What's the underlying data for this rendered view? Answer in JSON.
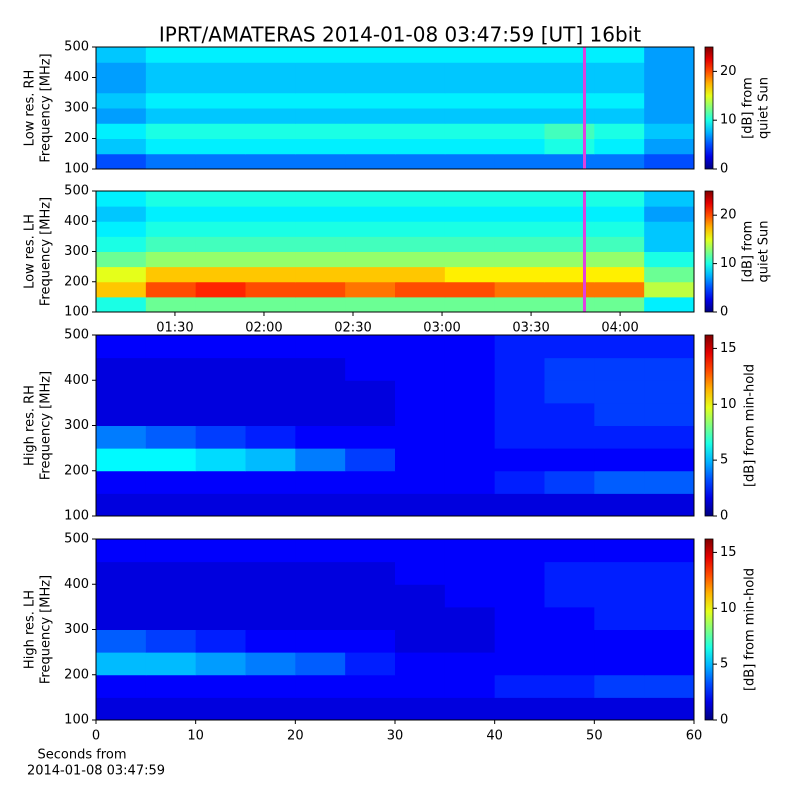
{
  "title": "IPRT/AMATERAS 2014-01-08 03:47:59 [UT]   16bit",
  "chart_data": [
    {
      "type": "heatmap",
      "ylabel": [
        "Low res. RH",
        "Frequency [MHz]"
      ],
      "clabel": [
        "[dB] from",
        "quiet Sun"
      ],
      "xlim": [
        63.4,
        264.9
      ],
      "ylim": [
        100,
        500
      ],
      "yticks": [
        100,
        200,
        300,
        400,
        500
      ],
      "zlim": [
        0,
        25
      ],
      "cticks": [
        0,
        10,
        20
      ],
      "marker_x": 228,
      "marker_color": "#e040e0",
      "z": [
        [
          5,
          6,
          6,
          6,
          6,
          6,
          6,
          6,
          6,
          6,
          6,
          5
        ],
        [
          8,
          9,
          9,
          9,
          9,
          9,
          9,
          9,
          9,
          10,
          9,
          7
        ],
        [
          9,
          10,
          10,
          10,
          10,
          10,
          10,
          10,
          10,
          11,
          10,
          8
        ],
        [
          7,
          8,
          8,
          8,
          8,
          8,
          8,
          8,
          8,
          8,
          8,
          7
        ],
        [
          8,
          9,
          9,
          9,
          9,
          9,
          9,
          9,
          9,
          9,
          9,
          7
        ],
        [
          7,
          8,
          8,
          8,
          8,
          8,
          8,
          8,
          8,
          8,
          8,
          7
        ],
        [
          7,
          8,
          8,
          8,
          8,
          8,
          8,
          8,
          8,
          8,
          8,
          7
        ],
        [
          8,
          9,
          9,
          9,
          9,
          9,
          9,
          9,
          9,
          9,
          9,
          7
        ]
      ]
    },
    {
      "type": "heatmap",
      "ylabel": [
        "Low res. LH",
        "Frequency [MHz]"
      ],
      "clabel": [
        "[dB] from",
        "quiet Sun"
      ],
      "xlim": [
        63.4,
        264.9
      ],
      "ylim": [
        100,
        500
      ],
      "yticks": [
        100,
        200,
        300,
        400,
        500
      ],
      "xticks": [
        {
          "value": 90,
          "label": "01:30"
        },
        {
          "value": 120,
          "label": "02:00"
        },
        {
          "value": 150,
          "label": "02:30"
        },
        {
          "value": 180,
          "label": "03:00"
        },
        {
          "value": 210,
          "label": "03:30"
        },
        {
          "value": 240,
          "label": "04:00"
        }
      ],
      "zlim": [
        0,
        25
      ],
      "cticks": [
        0,
        10,
        20
      ],
      "marker_x": 228,
      "marker_color": "#e040e0",
      "z": [
        [
          10,
          12,
          12,
          12,
          12,
          12,
          12,
          12,
          12,
          12,
          12,
          9
        ],
        [
          17,
          20,
          21,
          20,
          20,
          19,
          20,
          20,
          19,
          19,
          19,
          14
        ],
        [
          15,
          17,
          17,
          17,
          17,
          17,
          17,
          16,
          16,
          16,
          16,
          12
        ],
        [
          12,
          13,
          13,
          13,
          13,
          13,
          13,
          13,
          13,
          13,
          13,
          10
        ],
        [
          10,
          11,
          11,
          11,
          11,
          11,
          11,
          11,
          11,
          11,
          11,
          8
        ],
        [
          9,
          10,
          10,
          10,
          10,
          10,
          10,
          10,
          10,
          10,
          10,
          8
        ],
        [
          8,
          9,
          9,
          9,
          9,
          9,
          9,
          9,
          9,
          9,
          9,
          7
        ],
        [
          9,
          10,
          10,
          10,
          10,
          10,
          10,
          10,
          10,
          10,
          10,
          8
        ]
      ]
    },
    {
      "type": "heatmap",
      "ylabel": [
        "High res. RH",
        "Frequency [MHz]"
      ],
      "clabel": [
        "[dB] from min-hold"
      ],
      "xlim": [
        0,
        60
      ],
      "ylim": [
        100,
        500
      ],
      "yticks": [
        100,
        200,
        300,
        400,
        500
      ],
      "zlim": [
        0,
        16.2
      ],
      "cticks": [
        0,
        5,
        10,
        15
      ],
      "z": [
        [
          1.5,
          1.5,
          1.5,
          1.5,
          1.5,
          1.5,
          1.5,
          1.5,
          1.5,
          1.5,
          1.5,
          1.5
        ],
        [
          2,
          2,
          2,
          2,
          2,
          2,
          2,
          2,
          2.5,
          3,
          3.5,
          3.5
        ],
        [
          6,
          6,
          5.5,
          5,
          4,
          3,
          2,
          2,
          2,
          2,
          2,
          2
        ],
        [
          4,
          3.5,
          3,
          2.5,
          2,
          2,
          2,
          2,
          2.5,
          2.5,
          2.5,
          2.5
        ],
        [
          1.5,
          1.5,
          1.5,
          1.5,
          1.5,
          1.5,
          2,
          2,
          2.5,
          2.5,
          3,
          3
        ],
        [
          1.5,
          1.5,
          1.5,
          1.5,
          1.5,
          1.5,
          2,
          2,
          2.5,
          3,
          3,
          3
        ],
        [
          1.5,
          1.5,
          1.5,
          1.5,
          1.5,
          2,
          2,
          2,
          2.5,
          3,
          3,
          3
        ],
        [
          2,
          2,
          2,
          2,
          2,
          2,
          2,
          2,
          2.5,
          2.5,
          2.5,
          2.5
        ]
      ]
    },
    {
      "type": "heatmap",
      "ylabel": [
        "High res. LH",
        "Frequency [MHz]"
      ],
      "clabel": [
        "[dB] from min-hold"
      ],
      "xlim": [
        0,
        60
      ],
      "ylim": [
        100,
        500
      ],
      "yticks": [
        100,
        200,
        300,
        400,
        500
      ],
      "xticks": [
        0,
        10,
        20,
        30,
        40,
        50,
        60
      ],
      "xlabel": [
        "Seconds from",
        "2014-01-08 03:47:59"
      ],
      "zlim": [
        0,
        16.2
      ],
      "cticks": [
        0,
        5,
        10,
        15
      ],
      "z": [
        [
          1.5,
          1.5,
          1.5,
          1.5,
          1.5,
          1.5,
          1.5,
          1.5,
          1.5,
          1.5,
          1.5,
          1.5
        ],
        [
          2,
          2,
          2,
          2,
          2,
          2,
          2,
          2,
          2.5,
          2.5,
          3,
          3
        ],
        [
          5,
          5,
          4.5,
          4,
          3.5,
          2.5,
          2,
          2,
          2,
          2,
          2,
          2
        ],
        [
          3.5,
          3,
          2.5,
          2,
          2,
          2,
          1.5,
          1.5,
          2,
          2,
          2,
          2
        ],
        [
          1.5,
          1.5,
          1.5,
          1.5,
          1.5,
          1.5,
          1.5,
          1.5,
          2,
          2,
          2.5,
          2.5
        ],
        [
          1.5,
          1.5,
          1.5,
          1.5,
          1.5,
          1.5,
          1.5,
          2,
          2,
          2.5,
          2.5,
          2.5
        ],
        [
          1.5,
          1.5,
          1.5,
          1.5,
          1.5,
          1.5,
          2,
          2,
          2,
          2.5,
          2.5,
          2.5
        ],
        [
          2,
          2,
          2,
          2,
          2,
          2,
          2,
          2,
          2,
          2,
          2,
          2
        ]
      ]
    }
  ]
}
